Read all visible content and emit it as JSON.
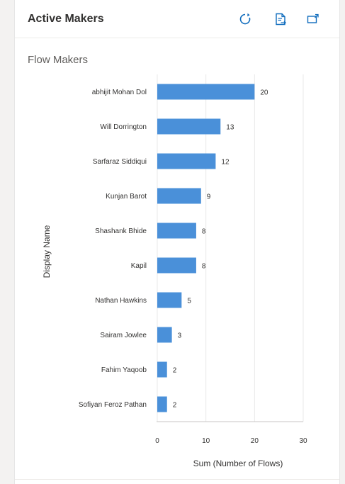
{
  "card": {
    "title": "Active Makers",
    "icons": [
      "refresh-icon",
      "export-data-icon",
      "popout-icon"
    ]
  },
  "chart_data": {
    "type": "bar",
    "orientation": "horizontal",
    "title": "Flow Makers",
    "xlabel": "Sum (Number of Flows)",
    "ylabel": "Display Name",
    "categories": [
      "abhijit Mohan Dol",
      "Will Dorrington",
      "Sarfaraz Siddiqui",
      "Kunjan Barot",
      "Shashank Bhide",
      "Kapil",
      "Nathan Hawkins",
      "Sairam Jowlee",
      "Fahim Yaqoob",
      "Sofiyan Feroz Pathan"
    ],
    "values": [
      20,
      13,
      12,
      9,
      8,
      8,
      5,
      3,
      2,
      2
    ],
    "xlim": [
      0,
      30
    ],
    "xticks": [
      0,
      10,
      20,
      30
    ],
    "bar_color": "#4a90d9",
    "grid": true
  },
  "colors": {
    "accent": "#0f6cbd",
    "bar": "#4a90d9"
  }
}
